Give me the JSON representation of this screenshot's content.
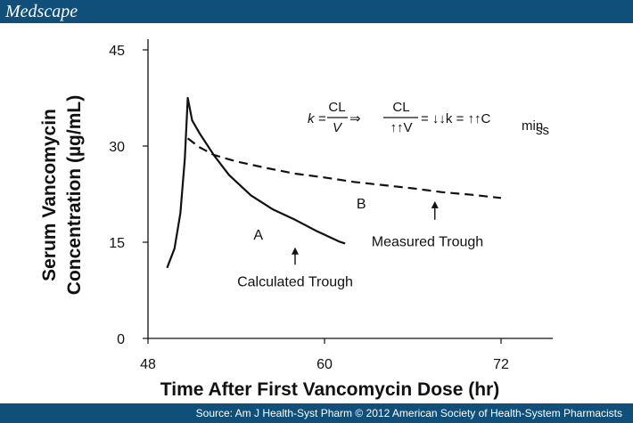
{
  "header": {
    "logo": "Medscape"
  },
  "footer": {
    "source": "Source: Am J Health-Syst Pharm © 2012 American Society of Health-System Pharmacists"
  },
  "colors": {
    "bar": "#0f4f7a",
    "line": "#111111"
  },
  "formula": {
    "k": "k",
    "eq": "=",
    "num1": "CL",
    "den1": "V",
    "arrow": "⇒",
    "num2": "CL",
    "den2": "↑↑V",
    "result": "= ↓↓k = ↑↑C",
    "sub": "min",
    "subsub": "ss"
  },
  "chart_data": {
    "type": "line",
    "xlabel": "Time After First Vancomycin Dose (hr)",
    "ylabel_line1": "Serum Vancomycin",
    "ylabel_line2": "Concentration (µg/mL)",
    "xlim": [
      48,
      72
    ],
    "ylim": [
      0,
      45
    ],
    "xticks": [
      48,
      60,
      72
    ],
    "yticks": [
      0,
      15,
      30,
      45
    ],
    "series": [
      {
        "name": "A",
        "style": "solid",
        "points": [
          [
            49.3,
            11
          ],
          [
            49.8,
            14
          ],
          [
            50.2,
            19.5
          ],
          [
            50.5,
            28
          ],
          [
            50.7,
            37.5
          ],
          [
            51.0,
            34
          ],
          [
            51.5,
            32
          ],
          [
            52.5,
            28.5
          ],
          [
            53.5,
            25.5
          ],
          [
            55,
            22.3
          ],
          [
            56.5,
            20.1
          ],
          [
            58,
            18.5
          ],
          [
            59.5,
            16.7
          ],
          [
            61,
            15.1
          ],
          [
            61.4,
            14.8
          ]
        ]
      },
      {
        "name": "B",
        "style": "dashed",
        "points": [
          [
            50.7,
            31.2
          ],
          [
            51.5,
            29.8
          ],
          [
            52.5,
            28.6
          ],
          [
            54,
            27.6
          ],
          [
            56,
            26.6
          ],
          [
            58,
            25.7
          ],
          [
            60,
            25.1
          ],
          [
            62,
            24.4
          ],
          [
            64,
            23.9
          ],
          [
            66,
            23.4
          ],
          [
            68,
            22.8
          ],
          [
            70,
            22.4
          ],
          [
            72,
            21.9
          ]
        ]
      }
    ],
    "annotations": [
      {
        "text": "A",
        "x": 55.5,
        "y": 15.4
      },
      {
        "text": "B",
        "x": 62.5,
        "y": 20.3
      },
      {
        "text": "Calculated Trough",
        "x": 58,
        "y": 8.1,
        "arrow_from": [
          58,
          11.5
        ],
        "arrow_to": [
          58,
          14.2
        ]
      },
      {
        "text": "Measured Trough",
        "x": 67,
        "y": 14.4,
        "arrow_from": [
          67.5,
          18.5
        ],
        "arrow_to": [
          67.5,
          21.4
        ]
      }
    ]
  }
}
